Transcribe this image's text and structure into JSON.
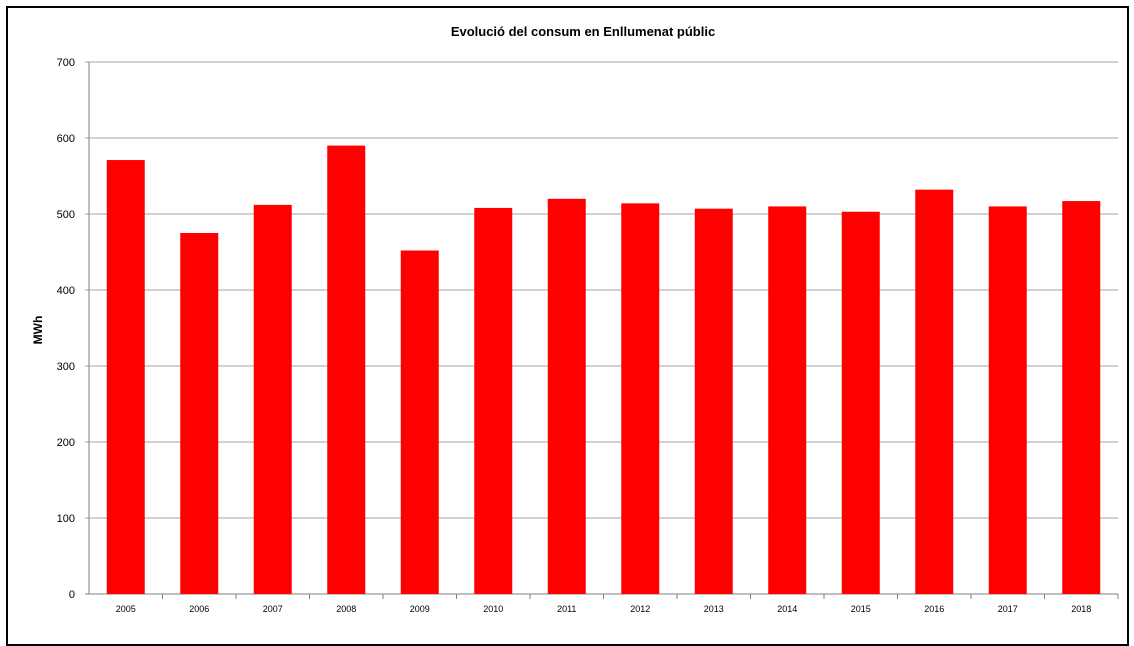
{
  "chart_data": {
    "type": "bar",
    "title": "Evolució del consum en Enllumenat públic",
    "xlabel": "",
    "ylabel": "MWh",
    "categories": [
      "2005",
      "2006",
      "2007",
      "2008",
      "2009",
      "2010",
      "2011",
      "2012",
      "2013",
      "2014",
      "2015",
      "2016",
      "2017",
      "2018"
    ],
    "series": [
      {
        "values": [
          571,
          475,
          512,
          590,
          452,
          508,
          520,
          514,
          507,
          510,
          503,
          532,
          510,
          517
        ]
      }
    ],
    "ylim": [
      0,
      700
    ],
    "yticks": [
      "0",
      "100",
      "200",
      "300",
      "400",
      "500",
      "600",
      "700"
    ],
    "grid": true,
    "legend": "none",
    "colors": {
      "bar": "#ff0000",
      "grid": "#a6a6a6",
      "axis": "#7f7f7f"
    }
  }
}
